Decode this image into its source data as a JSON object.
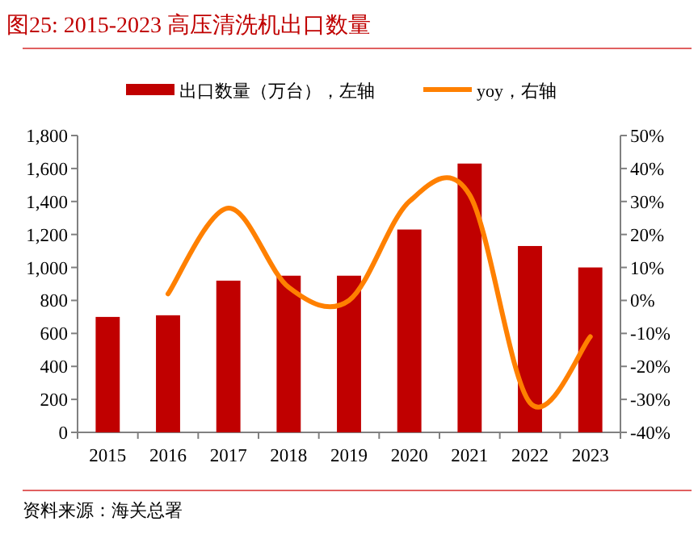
{
  "chart_data": {
    "type": "bar",
    "title": "图25:    2015-2023 高压清洗机出口数量",
    "categories": [
      "2015",
      "2016",
      "2017",
      "2018",
      "2019",
      "2020",
      "2021",
      "2022",
      "2023"
    ],
    "series": [
      {
        "name": "出口数量（万台），左轴",
        "color": "#c00000",
        "values": [
          700,
          710,
          920,
          950,
          950,
          1230,
          1630,
          1130,
          1000
        ]
      },
      {
        "name": "yoy，右轴",
        "type": "line",
        "axis": "y2",
        "color": "#ff8000",
        "values": [
          null,
          2,
          28,
          4,
          0,
          30,
          32,
          -31,
          -11
        ]
      }
    ],
    "ylim": [
      0,
      1800
    ],
    "yticks": [
      {
        "value": 0,
        "label": "0"
      },
      {
        "value": 200,
        "label": "200"
      },
      {
        "value": 400,
        "label": "400"
      },
      {
        "value": 600,
        "label": "600"
      },
      {
        "value": 800,
        "label": "800"
      },
      {
        "value": 1000,
        "label": "1,000"
      },
      {
        "value": 1200,
        "label": "1,200"
      },
      {
        "value": 1400,
        "label": "1,400"
      },
      {
        "value": 1600,
        "label": "1,600"
      },
      {
        "value": 1800,
        "label": "1,800"
      }
    ],
    "y2lim": [
      -40,
      50
    ],
    "y2ticks": [
      {
        "value": -40,
        "label": "-40%"
      },
      {
        "value": -30,
        "label": "-30%"
      },
      {
        "value": -20,
        "label": "-20%"
      },
      {
        "value": -10,
        "label": "-10%"
      },
      {
        "value": 0,
        "label": "0%"
      },
      {
        "value": 10,
        "label": "10%"
      },
      {
        "value": 20,
        "label": "20%"
      },
      {
        "value": 30,
        "label": "30%"
      },
      {
        "value": 40,
        "label": "40%"
      },
      {
        "value": 50,
        "label": "50%"
      }
    ],
    "legend": "top",
    "grid": false,
    "annotations": [
      "资料来源：海关总署"
    ]
  }
}
